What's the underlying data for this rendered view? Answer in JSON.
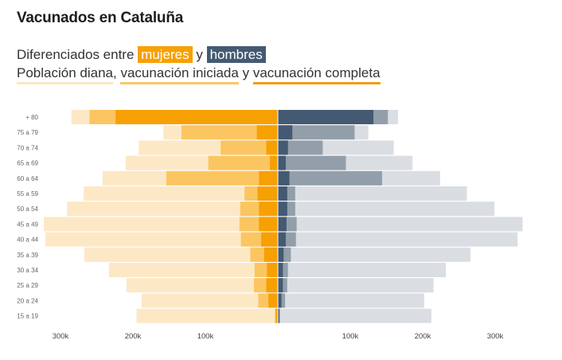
{
  "title": "Vacunados en Cataluña",
  "subtitle": {
    "prefix": "Diferenciados entre",
    "mujeres": "mujeres",
    "y": "y",
    "hombres": "hombres"
  },
  "legend": {
    "diana": "Población diana",
    "comma": ",",
    "iniciada": "vacunación iniciada",
    "y": "y",
    "completa": "vacunación completa"
  },
  "colors": {
    "women_diana": "#fde8c6",
    "women_iniciada": "#fbc661",
    "women_completa": "#f7a004",
    "men_diana": "#dadee2",
    "men_iniciada": "#929fab",
    "men_completa": "#445a72",
    "mujeres_chip": "#f7a004",
    "hombres_chip": "#445a72"
  },
  "chart_data": {
    "type": "bar",
    "orientation": "horizontal-population-pyramid",
    "categories": [
      "+ 80",
      "75 a 79",
      "70 a 74",
      "65 a 69",
      "60 a 64",
      "55 a 59",
      "50 a 54",
      "45 a 49",
      "40 a 44",
      "35 a 39",
      "30 a 34",
      "25 a 29",
      "20 a 24",
      "15 a 19"
    ],
    "x_ticks": [
      -300000,
      -200000,
      -100000,
      100000,
      200000,
      300000
    ],
    "x_tick_labels": [
      "300k",
      "200k",
      "100k",
      "100k",
      "200k",
      "300k"
    ],
    "women": {
      "diana": [
        285000,
        158000,
        192000,
        210000,
        242000,
        268000,
        291000,
        323000,
        321000,
        267000,
        233000,
        209000,
        188000,
        195000
      ],
      "iniciada": [
        260000,
        133000,
        79000,
        96000,
        154000,
        46000,
        52000,
        53000,
        51000,
        38000,
        32000,
        33000,
        27000,
        4000
      ],
      "completa": [
        224000,
        29000,
        16000,
        11000,
        26000,
        28000,
        26000,
        26000,
        23000,
        19000,
        15000,
        16000,
        13000,
        3000
      ]
    },
    "men": {
      "diana": [
        166000,
        125000,
        160000,
        186000,
        224000,
        261000,
        299000,
        338000,
        331000,
        266000,
        232000,
        215000,
        202000,
        212000
      ],
      "iniciada": [
        152000,
        106000,
        62000,
        94000,
        144000,
        24000,
        24000,
        26000,
        25000,
        18000,
        14000,
        13000,
        10000,
        3000
      ],
      "completa": [
        132000,
        20000,
        14000,
        11000,
        16000,
        13000,
        13000,
        12000,
        11000,
        8000,
        7000,
        7000,
        5000,
        2000
      ]
    }
  }
}
